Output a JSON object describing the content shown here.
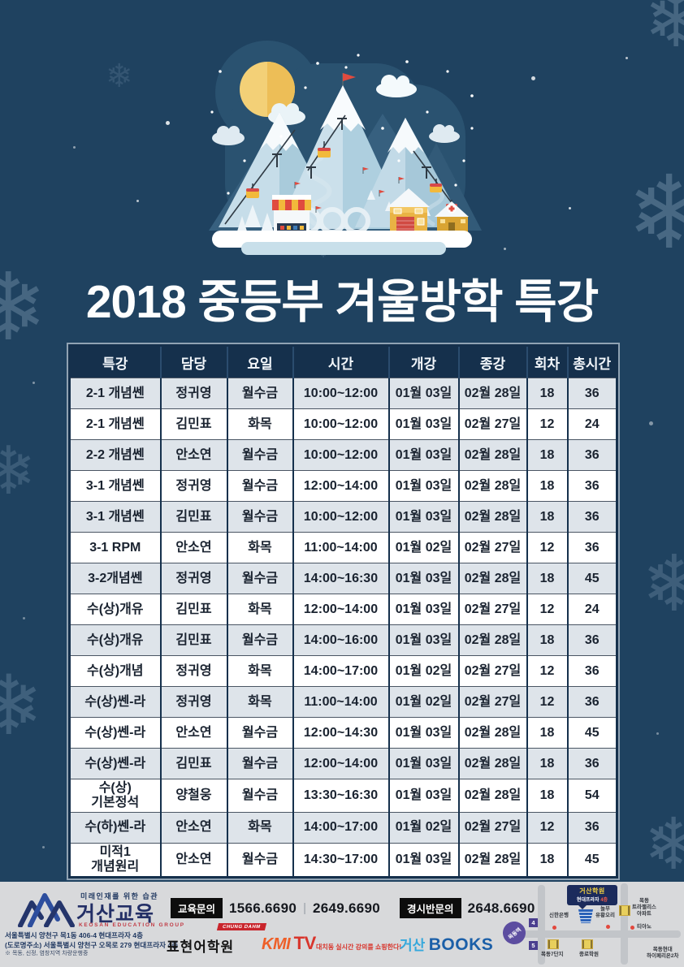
{
  "page": {
    "title": "2018 중등부 겨울방학 특강"
  },
  "icons": {
    "snowflake": "❄"
  },
  "colors": {
    "background": "#1F4260",
    "table_header": "#15304C",
    "row_alt": "#DEE4EA",
    "accent_red": "#E04B3F",
    "accent_yellow": "#F2B93B",
    "footer_bg": "#D8D9DB",
    "logo_navy": "#232F66",
    "logo_red": "#C13A44",
    "map_purple": "#4B3F8F",
    "books_blue": "#1B5FA8",
    "books_cyan": "#35A8DC",
    "kmi_orange": "#EE5F28",
    "kmi_red": "#D8352C"
  },
  "table": {
    "headers": [
      "특강",
      "담당",
      "요일",
      "시간",
      "개강",
      "종강",
      "회차",
      "총시간"
    ],
    "rows": [
      [
        "2-1 개념쎈",
        "정귀영",
        "월수금",
        "10:00~12:00",
        "01월 03일",
        "02월 28일",
        "18",
        "36"
      ],
      [
        "2-1 개념쎈",
        "김민표",
        "화목",
        "10:00~12:00",
        "01월 03일",
        "02월 27일",
        "12",
        "24"
      ],
      [
        "2-2 개념쎈",
        "안소연",
        "월수금",
        "10:00~12:00",
        "01월 03일",
        "02월 28일",
        "18",
        "36"
      ],
      [
        "3-1 개념쎈",
        "정귀영",
        "월수금",
        "12:00~14:00",
        "01월 03일",
        "02월 28일",
        "18",
        "36"
      ],
      [
        "3-1 개념쎈",
        "김민표",
        "월수금",
        "10:00~12:00",
        "01월 03일",
        "02월 28일",
        "18",
        "36"
      ],
      [
        "3-1 RPM",
        "안소연",
        "화목",
        "11:00~14:00",
        "01월 02일",
        "02월 27일",
        "12",
        "36"
      ],
      [
        "3-2개념쎈",
        "정귀영",
        "월수금",
        "14:00~16:30",
        "01월 03일",
        "02월 28일",
        "18",
        "45"
      ],
      [
        "수(상)개유",
        "김민표",
        "화목",
        "12:00~14:00",
        "01월 03일",
        "02월 27일",
        "12",
        "24"
      ],
      [
        "수(상)개유",
        "김민표",
        "월수금",
        "14:00~16:00",
        "01월 03일",
        "02월 28일",
        "18",
        "36"
      ],
      [
        "수(상)개념",
        "정귀영",
        "화목",
        "14:00~17:00",
        "01월 02일",
        "02월 27일",
        "12",
        "36"
      ],
      [
        "수(상)쎈-라",
        "정귀영",
        "화목",
        "11:00~14:00",
        "01월 02일",
        "02월 27일",
        "12",
        "36"
      ],
      [
        "수(상)쎈-라",
        "안소연",
        "월수금",
        "12:00~14:30",
        "01월 03일",
        "02월 28일",
        "18",
        "45"
      ],
      [
        "수(상)쎈-라",
        "김민표",
        "월수금",
        "12:00~14:00",
        "01월 03일",
        "02월 28일",
        "18",
        "36"
      ],
      [
        "수(상)\n기본정석",
        "양철웅",
        "월수금",
        "13:30~16:30",
        "01월 03일",
        "02월 28일",
        "18",
        "54"
      ],
      [
        "수(하)쎈-라",
        "안소연",
        "화목",
        "14:00~17:00",
        "01월 02일",
        "02월 27일",
        "12",
        "36"
      ],
      [
        "미적1\n개념원리",
        "안소연",
        "월수금",
        "14:30~17:00",
        "01월 03일",
        "02월 28일",
        "18",
        "45"
      ]
    ]
  },
  "footer": {
    "logo": {
      "tagline": "미래인재를 위한 습관",
      "name": "거산교육",
      "subname": "KEOSAN EDUCATION GROUP",
      "address1": "서울특별시 양천구 목1동 406-4 현대프라자 4층",
      "address2": "(도로명주소) 서울특별시 양천구 오목로 279 현대프라자 4층",
      "note": "※ 목동, 신정, 염창지역 차량운행중"
    },
    "contact": {
      "edu_label": "교육문의",
      "edu_phone1": "1566.6690",
      "edu_phone2": "2649.6690",
      "contest_label": "경시반문의",
      "contest_phone": "2648.6690"
    },
    "partners": {
      "pyohyun": "표현어학원",
      "chungdahm": "CHUNG DAHM",
      "kmi_k": "KMI",
      "kmi_tv": "TV",
      "kmi_slogan": "대치동 실시간 강의를 쇼핑한다!",
      "books_kr": "거산",
      "books_en": "BOOKS"
    },
    "map": {
      "callout_title": "거산학원",
      "callout_sub1": "현대프라자",
      "callout_sub2": "4층",
      "station": "목동역",
      "exit_4": "4",
      "exit_5": "5",
      "labels": [
        "신한은행",
        "놀부\n유황오리",
        "목동\n트라팰리스\n아파트",
        "티아노",
        "목동7단지",
        "종로학원",
        "목동현대\n하이페리온2차"
      ]
    }
  }
}
